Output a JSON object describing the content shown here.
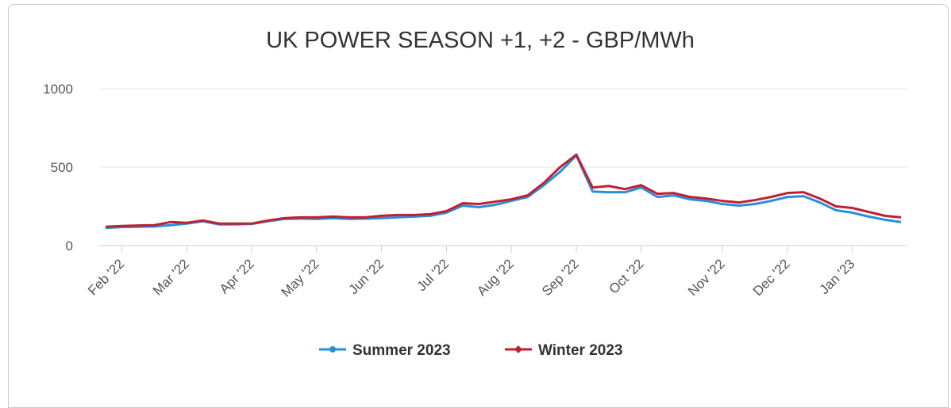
{
  "chart_data": {
    "type": "line",
    "title": "UK POWER SEASON +1, +2 - GBP/MWh",
    "categories": [
      null,
      "Feb '22",
      null,
      null,
      null,
      "Mar '22",
      null,
      null,
      null,
      "Apr '22",
      null,
      null,
      null,
      "May '22",
      null,
      null,
      null,
      "Jun '22",
      null,
      null,
      null,
      "Jul '22",
      null,
      null,
      null,
      "Aug '22",
      null,
      null,
      null,
      "Sep '22",
      null,
      null,
      null,
      "Oct '22",
      null,
      null,
      null,
      null,
      "Nov '22",
      null,
      null,
      null,
      "Dec '22",
      null,
      null,
      null,
      "Jan '23",
      null,
      null,
      null
    ],
    "series": [
      {
        "name": "Summer 2023",
        "color": "#2790db",
        "values": [
          113,
          118,
          120,
          122,
          130,
          140,
          155,
          135,
          135,
          138,
          155,
          170,
          172,
          170,
          175,
          170,
          172,
          175,
          180,
          185,
          190,
          210,
          255,
          245,
          260,
          285,
          310,
          385,
          470,
          575,
          345,
          340,
          340,
          370,
          310,
          320,
          295,
          285,
          265,
          255,
          265,
          285,
          310,
          315,
          275,
          225,
          210,
          185,
          165,
          150
        ]
      },
      {
        "name": "Winter 2023",
        "color": "#c21f30",
        "values": [
          120,
          125,
          128,
          130,
          150,
          145,
          160,
          140,
          140,
          140,
          160,
          175,
          180,
          180,
          185,
          180,
          180,
          190,
          195,
          195,
          200,
          220,
          270,
          265,
          280,
          295,
          320,
          400,
          500,
          580,
          370,
          380,
          360,
          385,
          330,
          335,
          310,
          300,
          285,
          275,
          290,
          310,
          335,
          340,
          300,
          250,
          240,
          215,
          190,
          180
        ]
      }
    ],
    "ylim": [
      0,
      1000
    ],
    "yticks": [
      0,
      500,
      1000
    ],
    "grid": true,
    "legend": "bottom"
  }
}
